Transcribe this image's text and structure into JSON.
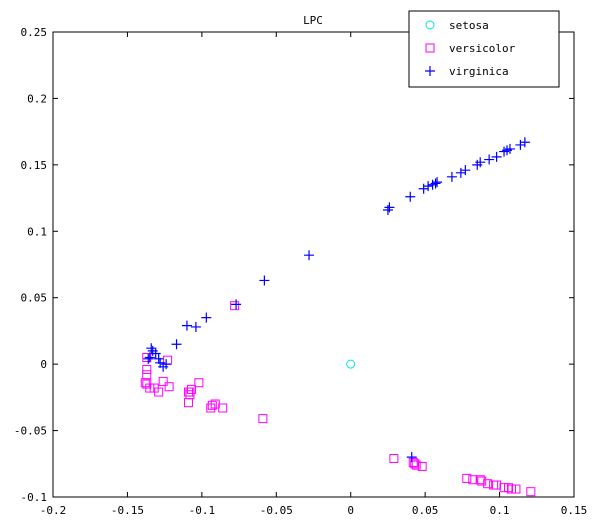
{
  "chart_data": {
    "type": "scatter",
    "title": "LPC",
    "xlabel": "",
    "ylabel": "",
    "xlim": [
      -0.2,
      0.15
    ],
    "ylim": [
      -0.1,
      0.25
    ],
    "xticks": [
      -0.2,
      -0.15,
      -0.1,
      -0.05,
      0,
      0.05,
      0.1,
      0.15
    ],
    "yticks": [
      -0.1,
      -0.05,
      0,
      0.05,
      0.1,
      0.15,
      0.2,
      0.25
    ],
    "xtick_labels": [
      "-0.2",
      "-0.15",
      "-0.1",
      "-0.05",
      "0",
      "0.05",
      "0.1",
      "0.15"
    ],
    "ytick_labels": [
      "-0.1",
      "-0.05",
      "0",
      "0.05",
      "0.1",
      "0.15",
      "0.2",
      "0.25"
    ],
    "grid": false,
    "legend_position": "top-right",
    "series": [
      {
        "name": "setosa",
        "marker": "circle",
        "color": "#00e5e5",
        "points": [
          [
            0.0,
            0.0
          ]
        ]
      },
      {
        "name": "versicolor",
        "marker": "square",
        "color": "#ff00ff",
        "points": [
          [
            -0.078,
            0.044
          ],
          [
            -0.059,
            -0.041
          ],
          [
            -0.086,
            -0.033
          ],
          [
            -0.091,
            -0.03
          ],
          [
            -0.093,
            -0.031
          ],
          [
            -0.094,
            -0.033
          ],
          [
            -0.102,
            -0.014
          ],
          [
            -0.107,
            -0.019
          ],
          [
            -0.108,
            -0.021
          ],
          [
            -0.108,
            -0.023
          ],
          [
            -0.109,
            -0.029
          ],
          [
            -0.109,
            -0.021
          ],
          [
            -0.122,
            -0.017
          ],
          [
            -0.123,
            0.003
          ],
          [
            -0.126,
            -0.013
          ],
          [
            -0.129,
            -0.021
          ],
          [
            -0.132,
            -0.018
          ],
          [
            -0.135,
            -0.018
          ],
          [
            -0.137,
            -0.015
          ],
          [
            -0.137,
            -0.008
          ],
          [
            -0.137,
            -0.004
          ],
          [
            -0.137,
            0.005
          ],
          [
            -0.138,
            -0.014
          ],
          [
            0.029,
            -0.071
          ],
          [
            0.042,
            -0.074
          ],
          [
            0.043,
            -0.075
          ],
          [
            0.044,
            -0.076
          ],
          [
            0.048,
            -0.077
          ],
          [
            0.078,
            -0.086
          ],
          [
            0.082,
            -0.087
          ],
          [
            0.087,
            -0.087
          ],
          [
            0.088,
            -0.088
          ],
          [
            0.092,
            -0.09
          ],
          [
            0.096,
            -0.091
          ],
          [
            0.098,
            -0.091
          ],
          [
            0.103,
            -0.093
          ],
          [
            0.106,
            -0.093
          ],
          [
            0.108,
            -0.094
          ],
          [
            0.111,
            -0.094
          ],
          [
            0.121,
            -0.096
          ]
        ]
      },
      {
        "name": "virginica",
        "marker": "plus",
        "color": "#0000ff",
        "points": [
          [
            -0.028,
            0.082
          ],
          [
            -0.058,
            0.063
          ],
          [
            -0.077,
            0.045
          ],
          [
            -0.097,
            0.035
          ],
          [
            -0.104,
            0.028
          ],
          [
            -0.11,
            0.029
          ],
          [
            -0.117,
            0.015
          ],
          [
            -0.124,
            0.0
          ],
          [
            -0.126,
            -0.002
          ],
          [
            -0.128,
            0.001
          ],
          [
            -0.129,
            0.004
          ],
          [
            -0.131,
            0.008
          ],
          [
            -0.133,
            0.01
          ],
          [
            -0.134,
            0.012
          ],
          [
            -0.135,
            0.005
          ],
          [
            -0.136,
            0.004
          ],
          [
            0.025,
            0.116
          ],
          [
            0.026,
            0.118
          ],
          [
            0.04,
            0.126
          ],
          [
            0.049,
            0.132
          ],
          [
            0.052,
            0.134
          ],
          [
            0.055,
            0.135
          ],
          [
            0.057,
            0.136
          ],
          [
            0.058,
            0.137
          ],
          [
            0.068,
            0.141
          ],
          [
            0.074,
            0.144
          ],
          [
            0.077,
            0.146
          ],
          [
            0.085,
            0.15
          ],
          [
            0.087,
            0.152
          ],
          [
            0.093,
            0.154
          ],
          [
            0.098,
            0.156
          ],
          [
            0.103,
            0.16
          ],
          [
            0.105,
            0.161
          ],
          [
            0.107,
            0.162
          ],
          [
            0.114,
            0.165
          ],
          [
            0.117,
            0.167
          ],
          [
            0.041,
            -0.07
          ]
        ]
      }
    ]
  }
}
